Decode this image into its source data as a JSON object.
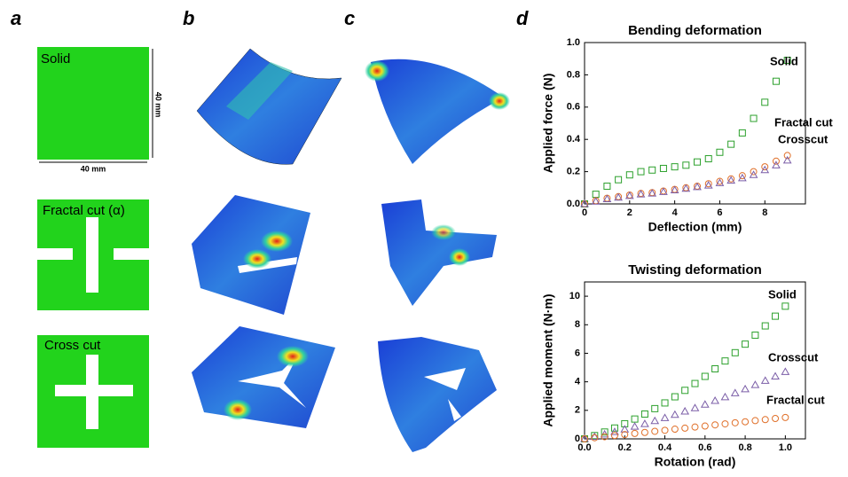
{
  "panels": {
    "labels": [
      "a",
      "b",
      "c",
      "d"
    ],
    "specimens": [
      "Solid",
      "Fractal cut (α)",
      "Cross cut"
    ],
    "dimension_vertical": "40 mm",
    "dimension_horizontal": "40 mm"
  },
  "chart_data": [
    {
      "type": "scatter",
      "title": "Bending deformation",
      "x_label": "Deflection (mm)",
      "y_label": "Applied force (N)",
      "x": [
        0,
        0.5,
        1,
        1.5,
        2,
        2.5,
        3,
        3.5,
        4,
        4.5,
        5,
        5.5,
        6,
        6.5,
        7,
        7.5,
        8,
        8.5,
        9
      ],
      "series": [
        {
          "name": "Solid",
          "color": "#2ca02c",
          "marker": "square",
          "values": [
            0,
            0.06,
            0.11,
            0.15,
            0.18,
            0.2,
            0.21,
            0.22,
            0.23,
            0.24,
            0.26,
            0.28,
            0.32,
            0.37,
            0.44,
            0.53,
            0.63,
            0.76,
            0.89
          ]
        },
        {
          "name": "Fractal cut",
          "color": "#e0702a",
          "marker": "circle",
          "values": [
            0,
            0.02,
            0.035,
            0.045,
            0.055,
            0.065,
            0.07,
            0.08,
            0.09,
            0.1,
            0.11,
            0.125,
            0.14,
            0.155,
            0.175,
            0.2,
            0.23,
            0.265,
            0.3
          ]
        },
        {
          "name": "Crosscut",
          "color": "#7b5ea7",
          "marker": "triangle",
          "values": [
            0,
            0.015,
            0.03,
            0.04,
            0.05,
            0.06,
            0.065,
            0.075,
            0.085,
            0.095,
            0.105,
            0.115,
            0.13,
            0.145,
            0.16,
            0.18,
            0.21,
            0.24,
            0.27
          ]
        }
      ],
      "xlim": [
        0,
        9.8
      ],
      "xticks": [
        0,
        2,
        4,
        6,
        8
      ],
      "ylim": [
        0,
        1.0
      ],
      "yticks": [
        {
          "value": 0,
          "label": "0.0"
        },
        0.2,
        0.4,
        0.6,
        0.8,
        {
          "value": 1,
          "label": "1.0"
        }
      ]
    },
    {
      "type": "scatter",
      "title": "Twisting deformation",
      "x_label": "Rotation (rad)",
      "y_label": "Applied moment (N·m)",
      "x": [
        0,
        0.05,
        0.1,
        0.15,
        0.2,
        0.25,
        0.3,
        0.35,
        0.4,
        0.45,
        0.5,
        0.55,
        0.6,
        0.65,
        0.7,
        0.75,
        0.8,
        0.85,
        0.9,
        0.95,
        1
      ],
      "series": [
        {
          "name": "Solid",
          "color": "#2ca02c",
          "marker": "square",
          "values": [
            0,
            0.23,
            0.48,
            0.76,
            1.06,
            1.39,
            1.74,
            2.12,
            2.52,
            2.95,
            3.4,
            3.88,
            4.38,
            4.91,
            5.46,
            6.04,
            6.64,
            7.27,
            7.92,
            8.6,
            9.3
          ]
        },
        {
          "name": "Crosscut",
          "color": "#7b5ea7",
          "marker": "triangle",
          "values": [
            0,
            0.15,
            0.32,
            0.49,
            0.67,
            0.86,
            1.05,
            1.26,
            1.47,
            1.69,
            1.93,
            2.16,
            2.41,
            2.67,
            2.93,
            3.21,
            3.49,
            3.78,
            4.08,
            4.38,
            4.7
          ]
        },
        {
          "name": "Fractal cut",
          "color": "#e0702a",
          "marker": "circle",
          "values": [
            0,
            0.08,
            0.15,
            0.23,
            0.3,
            0.38,
            0.45,
            0.53,
            0.6,
            0.68,
            0.75,
            0.83,
            0.9,
            0.98,
            1.05,
            1.13,
            1.2,
            1.28,
            1.35,
            1.43,
            1.5
          ]
        }
      ],
      "xlim": [
        0,
        1.1
      ],
      "xticks": [
        {
          "value": 0,
          "label": "0.0"
        },
        0.2,
        0.4,
        0.6,
        0.8,
        {
          "value": 1,
          "label": "1.0"
        }
      ],
      "ylim": [
        0,
        11
      ],
      "yticks": [
        0,
        2,
        4,
        6,
        8,
        10
      ]
    }
  ]
}
